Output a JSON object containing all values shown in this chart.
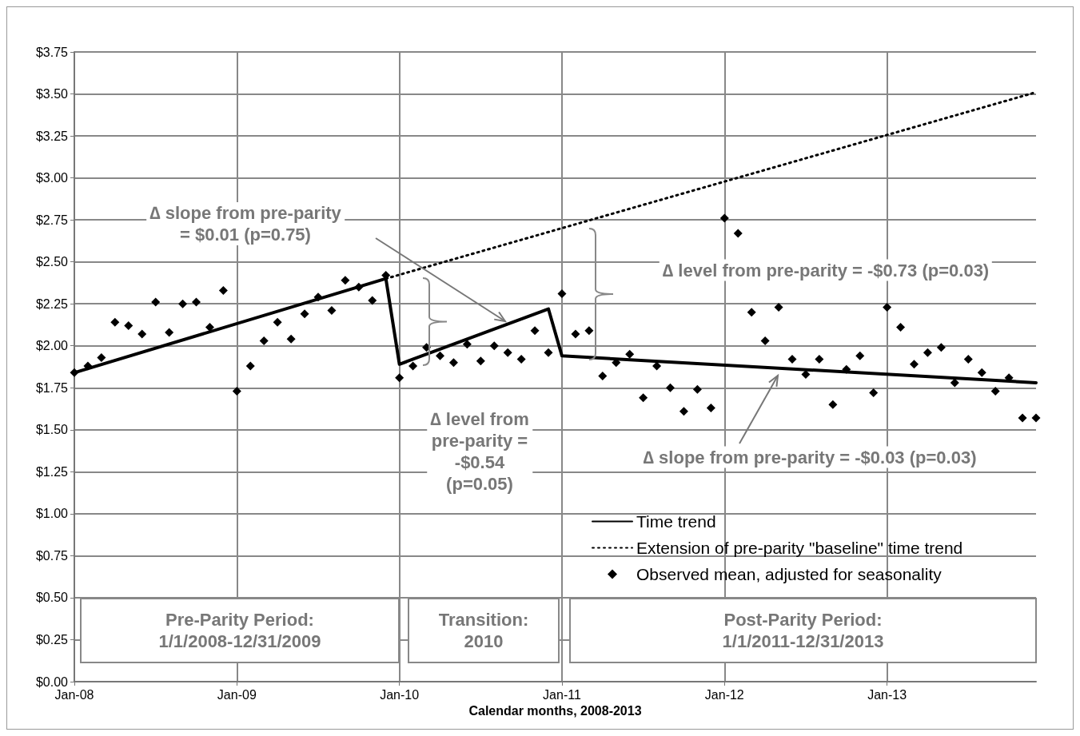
{
  "chart_data": {
    "type": "line",
    "xlabel": "Calendar months, 2008-2013",
    "xlim": [
      "2008-01",
      "2013-12"
    ],
    "xticks": [
      {
        "value": "2008-01",
        "label": "Jan-08"
      },
      {
        "value": "2009-01",
        "label": "Jan-09"
      },
      {
        "value": "2010-01",
        "label": "Jan-10"
      },
      {
        "value": "2011-01",
        "label": "Jan-11"
      },
      {
        "value": "2012-01",
        "label": "Jan-12"
      },
      {
        "value": "2013-01",
        "label": "Jan-13"
      }
    ],
    "ylim": [
      0,
      3.75
    ],
    "yticks": [
      {
        "value": 0,
        "label": "$0.00"
      },
      {
        "value": 0.25,
        "label": "$0.25"
      },
      {
        "value": 0.5,
        "label": "$0.50"
      },
      {
        "value": 0.75,
        "label": "$0.75"
      },
      {
        "value": 1,
        "label": "$1.00"
      },
      {
        "value": 1.25,
        "label": "$1.25"
      },
      {
        "value": 1.5,
        "label": "$1.50"
      },
      {
        "value": 1.75,
        "label": "$1.75"
      },
      {
        "value": 2,
        "label": "$2.00"
      },
      {
        "value": 2.25,
        "label": "$2.25"
      },
      {
        "value": 2.5,
        "label": "$2.50"
      },
      {
        "value": 2.75,
        "label": "$2.75"
      },
      {
        "value": 3,
        "label": "$3.00"
      },
      {
        "value": 3.25,
        "label": "$3.25"
      },
      {
        "value": 3.5,
        "label": "$3.50"
      },
      {
        "value": 3.75,
        "label": "$3.75"
      }
    ],
    "grid": true,
    "legend": "right",
    "series": [
      {
        "name": "Time trend",
        "type": "line",
        "color": "#000000",
        "line_style": "solid",
        "marker": "none",
        "x": [
          "2008-01",
          "2009-12",
          "2010-01",
          "2010-12",
          "2011-01",
          "2013-12"
        ],
        "values": [
          1.84,
          2.4,
          1.89,
          2.22,
          1.94,
          1.78
        ]
      },
      {
        "name": "Extension of pre-parity \"baseline\" time trend",
        "type": "line",
        "color": "#000000",
        "line_style": "dotted",
        "marker": "none",
        "x": [
          "2009-12",
          "2013-12"
        ],
        "values": [
          2.4,
          3.51
        ]
      },
      {
        "name": "Observed mean, adjusted for seasonality",
        "type": "scatter",
        "color": "#000000",
        "marker": "diamond",
        "x": [
          "2008-01",
          "2008-02",
          "2008-03",
          "2008-04",
          "2008-05",
          "2008-06",
          "2008-07",
          "2008-08",
          "2008-09",
          "2008-10",
          "2008-11",
          "2008-12",
          "2009-01",
          "2009-02",
          "2009-03",
          "2009-04",
          "2009-05",
          "2009-06",
          "2009-07",
          "2009-08",
          "2009-09",
          "2009-10",
          "2009-11",
          "2009-12",
          "2010-01",
          "2010-02",
          "2010-03",
          "2010-04",
          "2010-05",
          "2010-06",
          "2010-07",
          "2010-08",
          "2010-09",
          "2010-10",
          "2010-11",
          "2010-12",
          "2011-01",
          "2011-02",
          "2011-03",
          "2011-04",
          "2011-05",
          "2011-06",
          "2011-07",
          "2011-08",
          "2011-09",
          "2011-10",
          "2011-11",
          "2011-12",
          "2012-01",
          "2012-02",
          "2012-03",
          "2012-04",
          "2012-05",
          "2012-06",
          "2012-07",
          "2012-08",
          "2012-09",
          "2012-10",
          "2012-11",
          "2012-12",
          "2013-01",
          "2013-02",
          "2013-03",
          "2013-04",
          "2013-05",
          "2013-06",
          "2013-07",
          "2013-08",
          "2013-09",
          "2013-10",
          "2013-11",
          "2013-12"
        ],
        "values": [
          1.84,
          1.88,
          1.93,
          2.14,
          2.12,
          2.07,
          2.26,
          2.08,
          2.25,
          2.26,
          2.11,
          2.33,
          1.73,
          1.88,
          2.03,
          2.14,
          2.04,
          2.19,
          2.29,
          2.21,
          2.39,
          2.35,
          2.27,
          2.42,
          1.81,
          1.88,
          1.99,
          1.94,
          1.9,
          2.01,
          1.91,
          2.0,
          1.96,
          1.92,
          2.09,
          1.96,
          2.31,
          2.07,
          2.09,
          1.82,
          1.9,
          1.95,
          1.69,
          1.88,
          1.75,
          1.61,
          1.74,
          1.63,
          2.76,
          2.67,
          2.2,
          2.03,
          2.23,
          1.92,
          1.83,
          1.92,
          1.65,
          1.86,
          1.94,
          1.72,
          2.23,
          2.11,
          1.89,
          1.96,
          1.99,
          1.78,
          1.92,
          1.84,
          1.73,
          1.81,
          1.57,
          1.57
        ]
      }
    ],
    "annotations": [
      "∆ slope from pre-parity\n= $0.01 (p=0.75)",
      "∆ level from\npre-parity =\n-$0.54\n(p=0.05)",
      "∆ level from pre-parity = -$0.73 (p=0.03)",
      "∆ slope from pre-parity = -$0.03 (p=0.03)",
      "Pre-Parity Period:\n1/1/2008-12/31/2009",
      "Transition:\n2010",
      "Post-Parity Period:\n1/1/2011-12/31/2013"
    ]
  }
}
